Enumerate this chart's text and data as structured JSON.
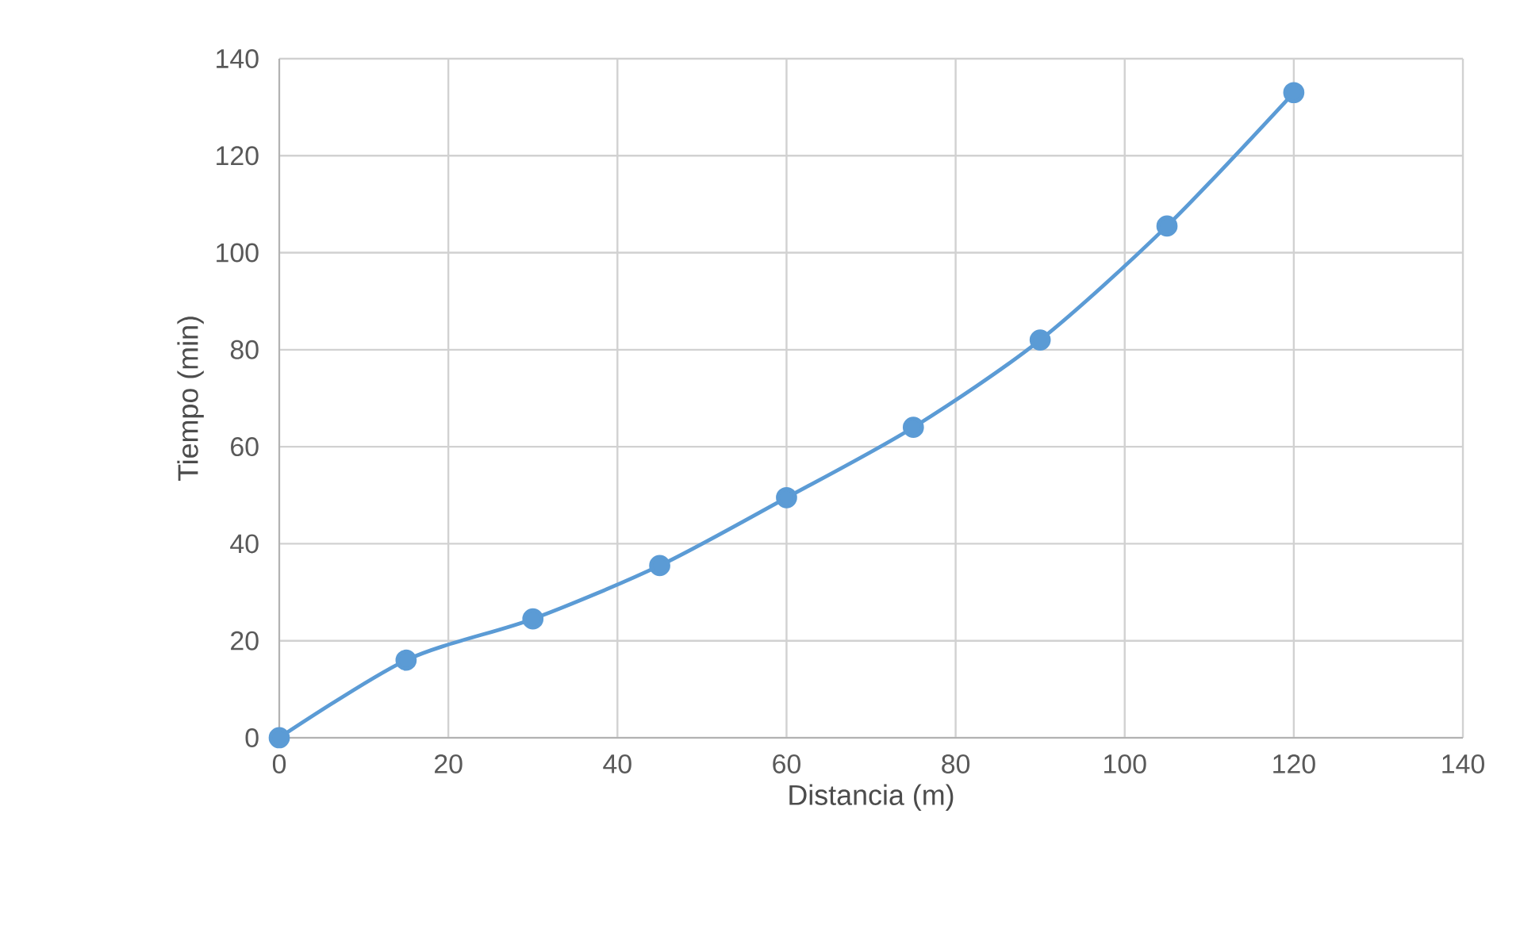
{
  "chart_data": {
    "type": "line",
    "xlabel": "Distancia (m)",
    "ylabel": "Tiempo (min)",
    "x": [
      0,
      15,
      30,
      45,
      60,
      75,
      90,
      105,
      120
    ],
    "series": [
      {
        "color": "#5b9bd5",
        "values": [
          0,
          16,
          24.5,
          35.5,
          49.5,
          64,
          82,
          105.5,
          133
        ]
      }
    ],
    "xlim": [
      0,
      140
    ],
    "xticks": [
      0,
      20,
      40,
      60,
      80,
      100,
      120,
      140
    ],
    "ylim": [
      0,
      140
    ],
    "yticks": [
      0,
      20,
      40,
      60,
      80,
      100,
      120,
      140
    ],
    "grid": true,
    "marker": "circle",
    "line_style": "solid"
  }
}
